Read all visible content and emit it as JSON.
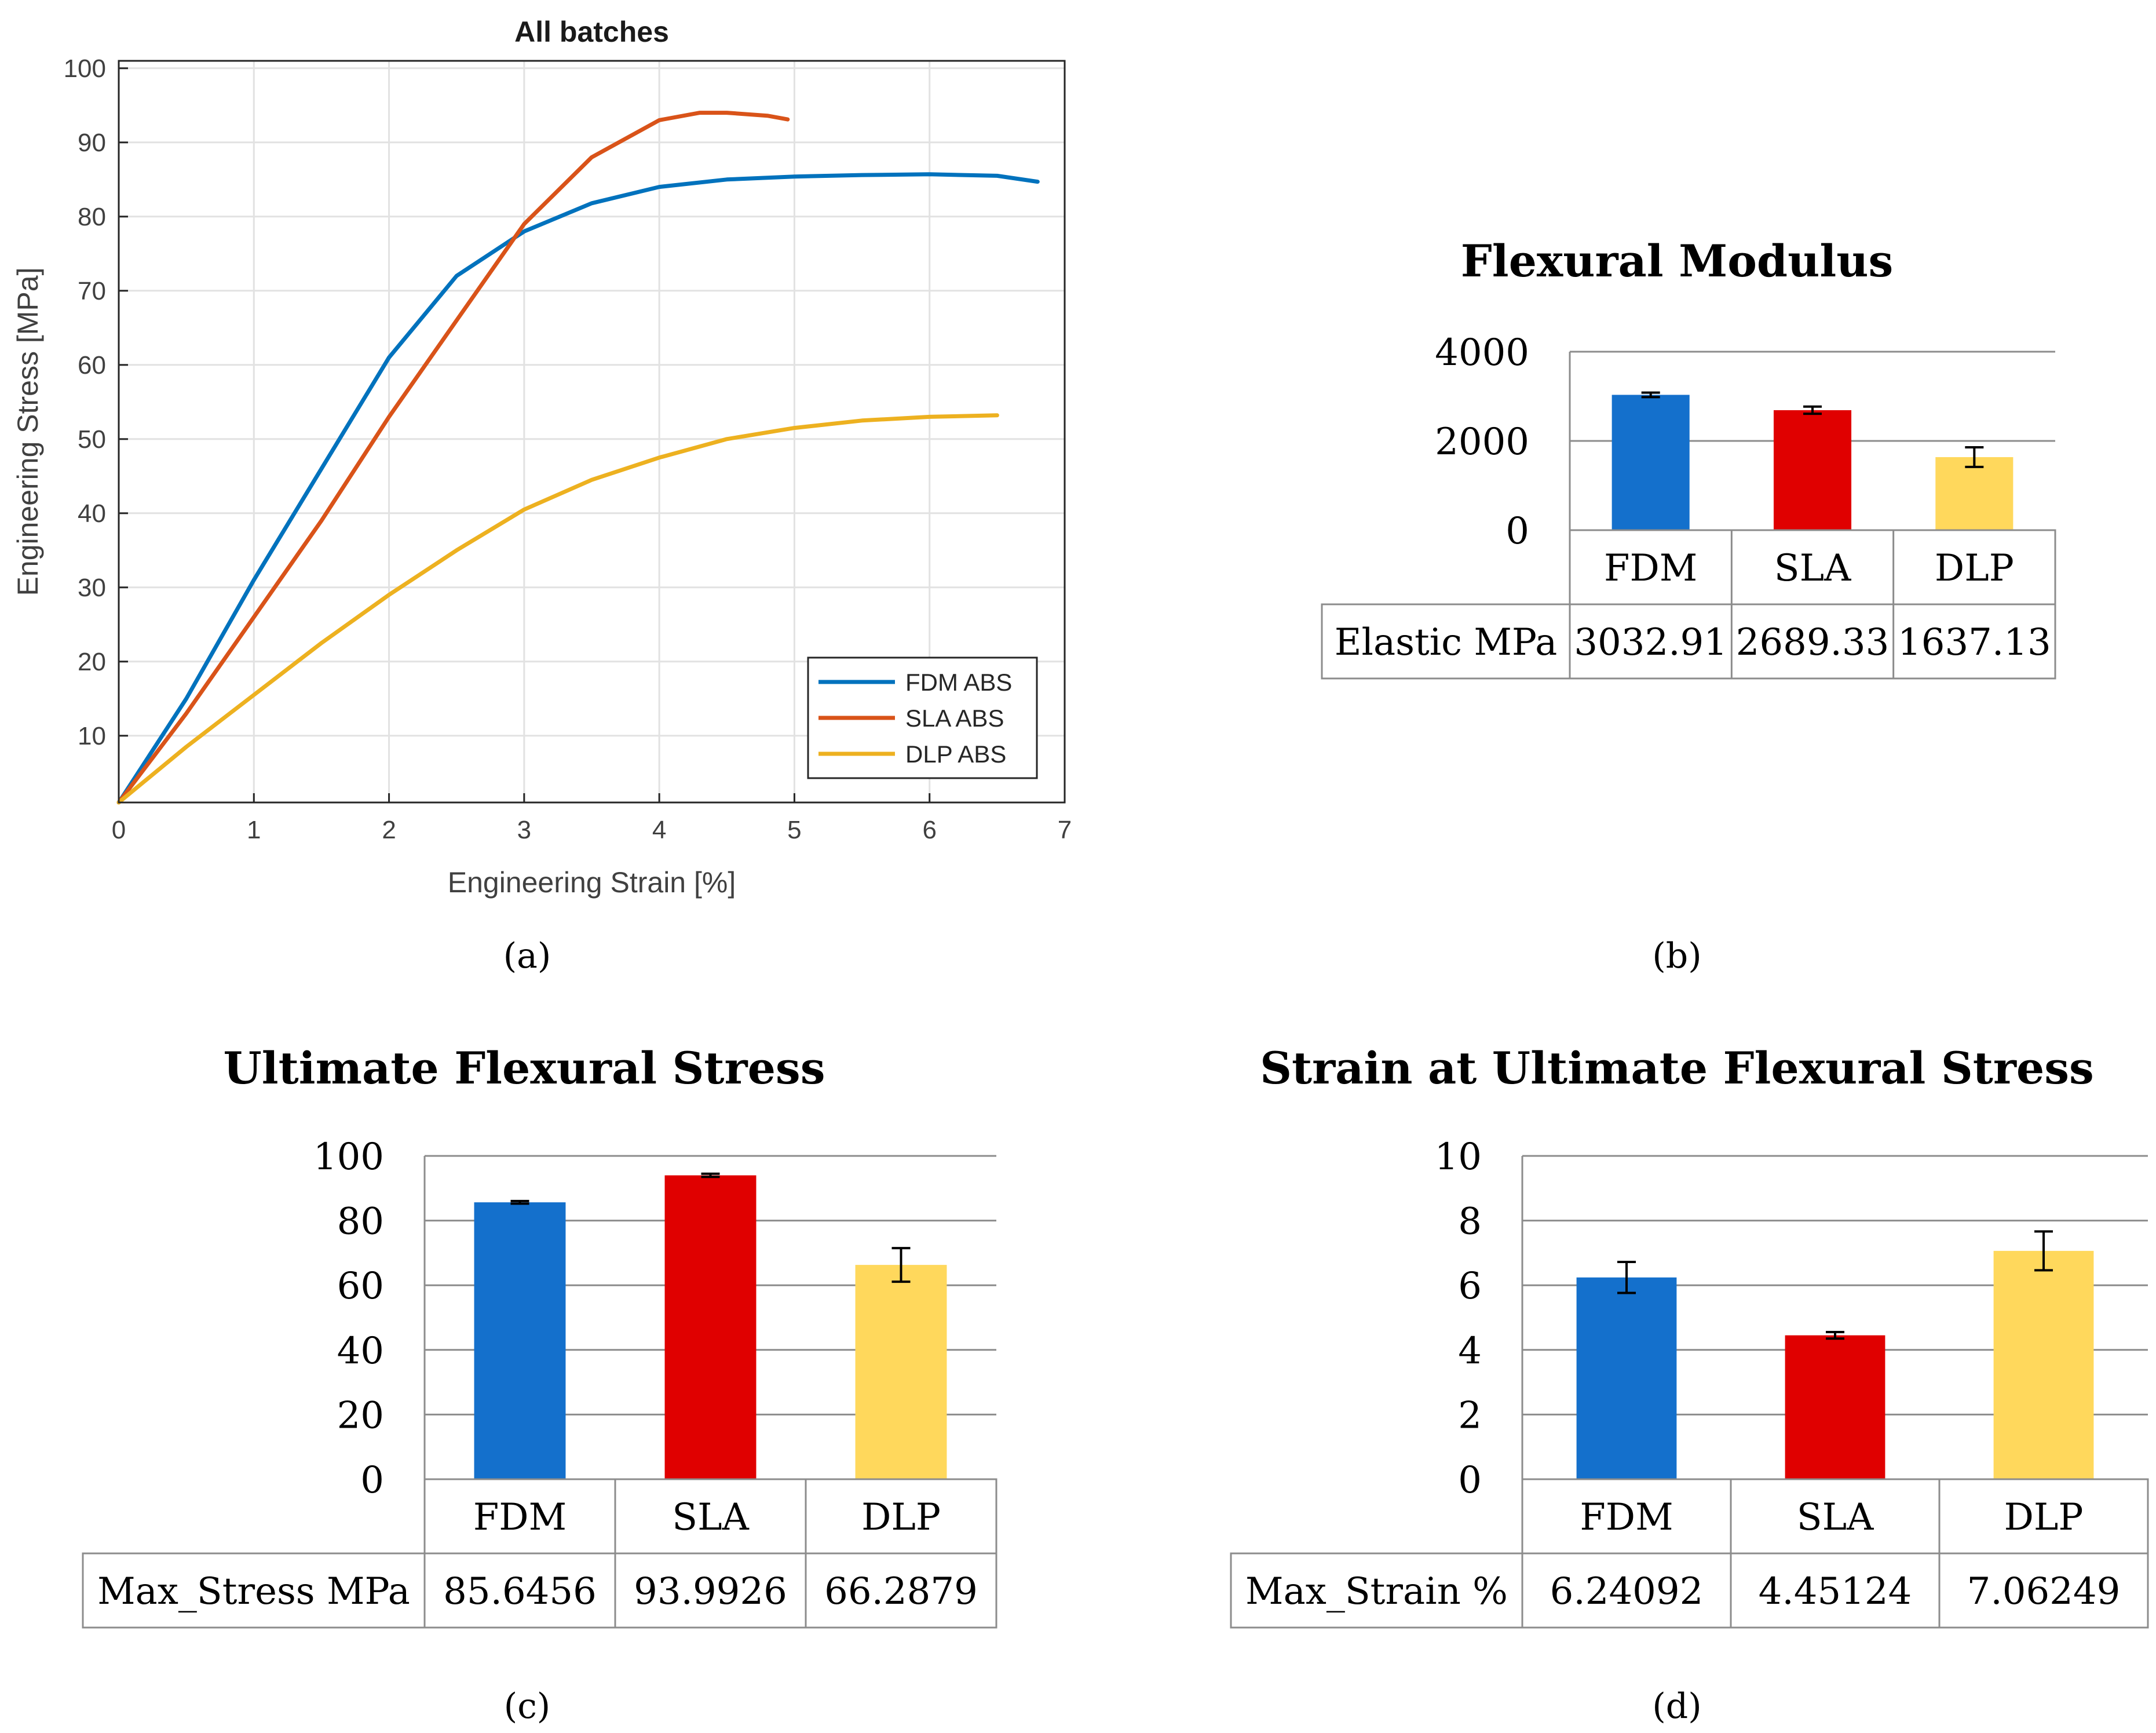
{
  "figure_labels": {
    "a": "(a)",
    "b": "(b)",
    "c": "(c)",
    "d": "(d)"
  },
  "chart_data": [
    {
      "id": "a",
      "type": "line",
      "title": "All batches",
      "xlabel": "Engineering Strain [%]",
      "ylabel": "Engineering Stress [MPa]",
      "xlim": [
        0,
        7
      ],
      "ylim": [
        1,
        101
      ],
      "xticks": [
        0,
        1,
        2,
        3,
        4,
        5,
        6,
        7
      ],
      "yticks": [
        10,
        20,
        30,
        40,
        50,
        60,
        70,
        80,
        90,
        100
      ],
      "grid": true,
      "legend_position": "bottom-right",
      "series": [
        {
          "name": "FDM ABS",
          "color": "#0072BD",
          "x": [
            0,
            0.5,
            1.0,
            1.5,
            2.0,
            2.5,
            3.0,
            3.5,
            4.0,
            4.5,
            5.0,
            5.5,
            6.0,
            6.5,
            6.8
          ],
          "y": [
            1,
            15,
            31,
            46,
            61,
            72,
            78,
            81.8,
            84,
            85,
            85.4,
            85.6,
            85.7,
            85.5,
            84.7
          ]
        },
        {
          "name": "SLA ABS",
          "color": "#D95319",
          "x": [
            0,
            0.5,
            1.0,
            1.5,
            2.0,
            2.5,
            3.0,
            3.5,
            4.0,
            4.3,
            4.5,
            4.8,
            4.95
          ],
          "y": [
            1,
            13,
            26,
            39,
            53,
            66,
            79,
            88,
            93,
            94,
            94,
            93.6,
            93.1
          ]
        },
        {
          "name": "DLP ABS",
          "color": "#EDB120",
          "x": [
            0,
            0.5,
            1.0,
            1.5,
            2.0,
            2.5,
            3.0,
            3.5,
            4.0,
            4.5,
            5.0,
            5.5,
            6.0,
            6.5
          ],
          "y": [
            1,
            8.5,
            15.5,
            22.5,
            29,
            35,
            40.5,
            44.5,
            47.5,
            50,
            51.5,
            52.5,
            53,
            53.2
          ]
        }
      ]
    },
    {
      "id": "b",
      "type": "bar",
      "title": "Flexural Modulus",
      "categories": [
        "FDM",
        "SLA",
        "DLP"
      ],
      "values": [
        3032.91,
        2689.33,
        1637.13
      ],
      "error": [
        50,
        80,
        220
      ],
      "colors": [
        "#1470CC",
        "#E00000",
        "#FFD85C"
      ],
      "ylim": [
        0,
        4000
      ],
      "yticks": [
        0,
        2000,
        4000
      ],
      "table_row_label": "Elastic MPa",
      "table_values": [
        "3032.91",
        "2689.33",
        "1637.13"
      ]
    },
    {
      "id": "c",
      "type": "bar",
      "title": "Ultimate Flexural Stress",
      "categories": [
        "FDM",
        "SLA",
        "DLP"
      ],
      "values": [
        85.6456,
        93.9926,
        66.2879
      ],
      "error": [
        0.4,
        0.5,
        5.2
      ],
      "colors": [
        "#1470CC",
        "#E00000",
        "#FFD85C"
      ],
      "ylim": [
        0,
        100
      ],
      "yticks": [
        0,
        20,
        40,
        60,
        80,
        100
      ],
      "table_row_label": "Max_Stress MPa",
      "table_values": [
        "85.6456",
        "93.9926",
        "66.2879"
      ]
    },
    {
      "id": "d",
      "type": "bar",
      "title": "Strain at Ultimate Flexural Stress",
      "categories": [
        "FDM",
        "SLA",
        "DLP"
      ],
      "values": [
        6.24092,
        4.45124,
        7.06249
      ],
      "error": [
        0.48,
        0.1,
        0.6
      ],
      "colors": [
        "#1470CC",
        "#E00000",
        "#FFD85C"
      ],
      "ylim": [
        0,
        10
      ],
      "yticks": [
        0,
        2,
        4,
        6,
        8,
        10
      ],
      "table_row_label": "Max_Strain %",
      "table_values": [
        "6.24092",
        "4.45124",
        "7.06249"
      ]
    }
  ]
}
